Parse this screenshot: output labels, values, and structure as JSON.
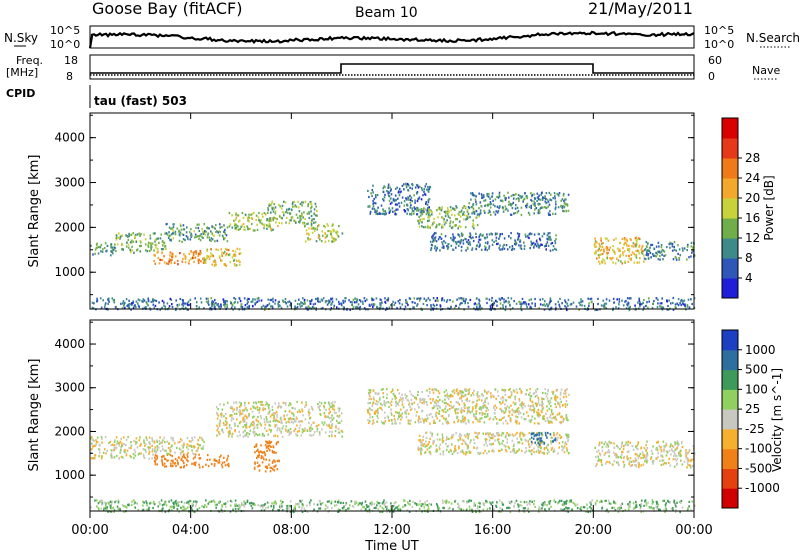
{
  "header": {
    "title": "Goose Bay (fitACF)",
    "beam": "Beam 10",
    "date": "21/May/2011"
  },
  "noise_panel": {
    "left_label": "N.Sky",
    "right_label": "N.Search",
    "tick_top": "10^5",
    "tick_bottom": "10^0",
    "right_tick_top": "10^5",
    "right_tick_bottom": "10^0"
  },
  "freq_panel": {
    "left_label_top": "Freq.",
    "left_label_bottom": "[MHz]",
    "left_tick_top": "18",
    "left_tick_bottom": "8",
    "right_label": "Nave",
    "right_tick_top": "60",
    "right_tick_bottom": "0"
  },
  "cpid": {
    "label": "CPID",
    "text": "tau (fast) 503"
  },
  "power_colorbar": {
    "label": "Power [dB]",
    "ticks": [
      "4",
      "8",
      "12",
      "16",
      "20",
      "24",
      "28"
    ],
    "colors": [
      "#1f1fd8",
      "#2e57b8",
      "#3d8a88",
      "#6fae4a",
      "#c8d23a",
      "#f2a82a",
      "#f07a1a",
      "#e6381a",
      "#d80000"
    ]
  },
  "velocity_colorbar": {
    "label": "Velocity [m s^-1]",
    "ticks": [
      "1000",
      "500",
      "100",
      "25",
      "-25",
      "-100",
      "-500",
      "-1000"
    ],
    "colors": [
      "#1d3fc2",
      "#2f6fa0",
      "#3e9a5a",
      "#8fd060",
      "#c8c8c0",
      "#f5b030",
      "#f08018",
      "#e44010",
      "#d00000"
    ]
  },
  "chart_data": [
    {
      "type": "heatmap",
      "name": "power",
      "xlabel": "",
      "ylabel": "Slant Range [km]",
      "x_ticks": [
        "00:00",
        "04:00",
        "08:00",
        "12:00",
        "16:00",
        "20:00",
        "00:00"
      ],
      "xlim_hours": [
        0,
        24
      ],
      "ylim_km": [
        180,
        4550
      ],
      "y_ticks": [
        1000,
        2000,
        3000,
        4000
      ],
      "echo_regions": [
        {
          "t": [
            0.0,
            1.0
          ],
          "range": [
            1400,
            1700
          ],
          "power": 10
        },
        {
          "t": [
            1.0,
            3.0
          ],
          "range": [
            1450,
            1900
          ],
          "power": 12
        },
        {
          "t": [
            2.5,
            4.5
          ],
          "range": [
            1200,
            1500
          ],
          "power": 22
        },
        {
          "t": [
            3.0,
            5.5
          ],
          "range": [
            1700,
            2100
          ],
          "power": 10
        },
        {
          "t": [
            4.5,
            6.0
          ],
          "range": [
            1150,
            1550
          ],
          "power": 18
        },
        {
          "t": [
            5.5,
            7.5
          ],
          "range": [
            1950,
            2350
          ],
          "power": 14
        },
        {
          "t": [
            7.0,
            9.0
          ],
          "range": [
            2100,
            2600
          ],
          "power": 12
        },
        {
          "t": [
            8.5,
            10.0
          ],
          "range": [
            1700,
            2100
          ],
          "power": 14
        },
        {
          "t": [
            11.0,
            13.5
          ],
          "range": [
            2300,
            3000
          ],
          "power": 6
        },
        {
          "t": [
            13.0,
            15.5
          ],
          "range": [
            2000,
            2500
          ],
          "power": 12
        },
        {
          "t": [
            15.0,
            19.0
          ],
          "range": [
            2300,
            2800
          ],
          "power": 8
        },
        {
          "t": [
            13.5,
            18.5
          ],
          "range": [
            1500,
            1900
          ],
          "power": 6
        },
        {
          "t": [
            20.0,
            22.0
          ],
          "range": [
            1200,
            1800
          ],
          "power": 18
        },
        {
          "t": [
            22.0,
            24.0
          ],
          "range": [
            1300,
            1700
          ],
          "power": 8
        },
        {
          "t": [
            0.0,
            24.0
          ],
          "range": [
            180,
            450
          ],
          "power": 6
        }
      ]
    },
    {
      "type": "heatmap",
      "name": "velocity",
      "xlabel": "Time UT",
      "ylabel": "Slant Range [km]",
      "x_ticks": [
        "00:00",
        "04:00",
        "08:00",
        "12:00",
        "16:00",
        "20:00",
        "00:00"
      ],
      "xlim_hours": [
        0,
        24
      ],
      "ylim_km": [
        180,
        4550
      ],
      "y_ticks": [
        1000,
        2000,
        3000,
        4000
      ],
      "echo_regions": [
        {
          "t": [
            0.0,
            2.5
          ],
          "range": [
            1400,
            1900
          ],
          "velocity": 0
        },
        {
          "t": [
            2.5,
            5.5
          ],
          "range": [
            1200,
            1500
          ],
          "velocity": -300
        },
        {
          "t": [
            2.5,
            4.5
          ],
          "range": [
            1500,
            1900
          ],
          "velocity": 0
        },
        {
          "t": [
            6.5,
            7.5
          ],
          "range": [
            1100,
            1800
          ],
          "velocity": -300
        },
        {
          "t": [
            5.0,
            10.0
          ],
          "range": [
            1900,
            2700
          ],
          "velocity": 0
        },
        {
          "t": [
            11.0,
            19.0
          ],
          "range": [
            2200,
            3000
          ],
          "velocity": 0
        },
        {
          "t": [
            13.0,
            19.0
          ],
          "range": [
            1500,
            2000
          ],
          "velocity": 0
        },
        {
          "t": [
            17.5,
            18.5
          ],
          "range": [
            1700,
            2000
          ],
          "velocity": 400
        },
        {
          "t": [
            20.0,
            24.0
          ],
          "range": [
            1200,
            1800
          ],
          "velocity": 0
        },
        {
          "t": [
            0.0,
            24.0
          ],
          "range": [
            180,
            450
          ],
          "velocity": 60
        }
      ]
    }
  ]
}
